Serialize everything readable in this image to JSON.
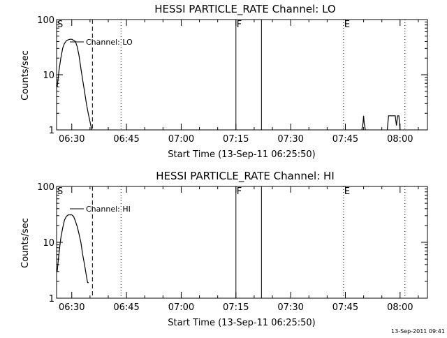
{
  "footer_stamp": "13-Sep-2011 09:41",
  "chart_data": [
    {
      "type": "line",
      "title": "HESSI PARTICLE_RATE Channel: LO",
      "xlabel": "Start Time (13-Sep-11 06:25:50)",
      "ylabel": "Counts/sec",
      "yscale": "log",
      "ylim": [
        1,
        100
      ],
      "xlim": [
        "06:25:50",
        "08:07:30"
      ],
      "ytick_labels": [
        "1",
        "10",
        "100"
      ],
      "xtick_labels": [
        "06:30",
        "06:45",
        "07:00",
        "07:15",
        "07:30",
        "07:45",
        "08:00"
      ],
      "grid": false,
      "legend": "top-left",
      "series": [
        {
          "name": "Channel: LO",
          "segments": [
            {
              "x": [
                "06:26:00",
                "06:26:30",
                "06:27:00",
                "06:27:30",
                "06:28:00",
                "06:28:30",
                "06:29:00",
                "06:29:30",
                "06:30:00",
                "06:30:30",
                "06:31:00",
                "06:31:30",
                "06:32:00",
                "06:32:30",
                "06:33:00",
                "06:33:30",
                "06:34:00",
                "06:34:30",
                "06:35:00",
                "06:35:30"
              ],
              "y": [
                6,
                12,
                20,
                30,
                37,
                41,
                43,
                44,
                44,
                42,
                40,
                32,
                22,
                13,
                8,
                5,
                3,
                2,
                1.4,
                1
              ]
            },
            {
              "x": [
                "07:49:30",
                "07:49:50",
                "07:50:00",
                "07:50:10",
                "07:50:30"
              ],
              "y": [
                1,
                1.3,
                1.8,
                1.3,
                1
              ]
            },
            {
              "x": [
                "07:56:30",
                "07:56:50",
                "07:58:40",
                "07:59:00",
                "07:59:20",
                "07:59:40",
                "08:00:00"
              ],
              "y": [
                1,
                1.8,
                1.8,
                1.2,
                1.8,
                1.8,
                1
              ]
            }
          ]
        }
      ],
      "markers": [
        {
          "label": "S",
          "x": "06:25:50",
          "style": "solid"
        },
        {
          "x": "06:35:40",
          "style": "dashed"
        },
        {
          "x": "06:43:30",
          "style": "dotted"
        },
        {
          "label": "F",
          "x": "07:15:00",
          "style": "solid"
        },
        {
          "x": "07:22:00",
          "style": "solid"
        },
        {
          "label": "E",
          "x": "07:44:30",
          "style": "dotted"
        },
        {
          "x": "08:01:20",
          "style": "dotted"
        }
      ]
    },
    {
      "type": "line",
      "title": "HESSI PARTICLE_RATE Channel: HI",
      "xlabel": "Start Time (13-Sep-11 06:25:50)",
      "ylabel": "Counts/sec",
      "yscale": "log",
      "ylim": [
        1,
        100
      ],
      "xlim": [
        "06:25:50",
        "08:07:30"
      ],
      "ytick_labels": [
        "1",
        "10",
        "100"
      ],
      "xtick_labels": [
        "06:30",
        "06:45",
        "07:00",
        "07:15",
        "07:30",
        "07:45",
        "08:00"
      ],
      "grid": false,
      "legend": "top-left",
      "series": [
        {
          "name": "Channel: HI",
          "segments": [
            {
              "x": [
                "06:26:00",
                "06:26:20",
                "06:26:40",
                "06:27:00",
                "06:27:30",
                "06:28:00",
                "06:28:30",
                "06:29:00",
                "06:29:30",
                "06:30:00",
                "06:30:30",
                "06:31:00",
                "06:31:30",
                "06:32:00",
                "06:32:30",
                "06:33:00",
                "06:33:30",
                "06:34:00",
                "06:34:20",
                "06:34:40"
              ],
              "y": [
                3,
                5,
                8,
                12,
                18,
                25,
                29,
                31,
                31,
                31,
                29,
                24,
                19,
                14,
                10,
                6,
                4,
                2.5,
                1.9,
                1.9
              ]
            }
          ]
        }
      ],
      "markers": [
        {
          "label": "S",
          "x": "06:25:50",
          "style": "solid"
        },
        {
          "x": "06:35:40",
          "style": "dashed"
        },
        {
          "x": "06:43:30",
          "style": "dotted"
        },
        {
          "label": "F",
          "x": "07:15:00",
          "style": "solid"
        },
        {
          "x": "07:22:00",
          "style": "solid"
        },
        {
          "label": "E",
          "x": "07:44:30",
          "style": "dotted"
        },
        {
          "x": "08:01:20",
          "style": "dotted"
        }
      ]
    }
  ]
}
